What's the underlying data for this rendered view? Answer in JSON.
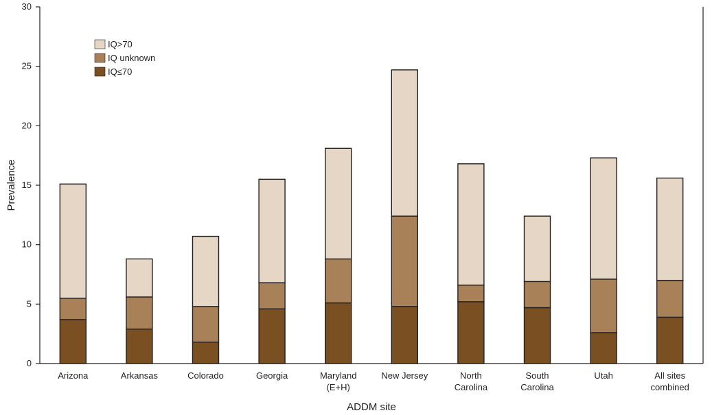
{
  "chart_data": {
    "type": "bar",
    "stacked": true,
    "title": "",
    "xlabel": "ADDM site",
    "ylabel": "Prevalence",
    "ylim": [
      0,
      30
    ],
    "yticks": [
      0,
      5,
      10,
      15,
      20,
      25,
      30
    ],
    "grid": false,
    "legend_position": "top-left",
    "categories": [
      [
        "Arizona"
      ],
      [
        "Arkansas"
      ],
      [
        "Colorado"
      ],
      [
        "Georgia"
      ],
      [
        "Maryland",
        "(E+H)"
      ],
      [
        "New Jersey"
      ],
      [
        "North",
        "Carolina"
      ],
      [
        "South",
        "Carolina"
      ],
      [
        "Utah"
      ],
      [
        "All sites",
        "combined"
      ]
    ],
    "series": [
      {
        "name": "IQ≤70",
        "color": "#7a5023",
        "values": [
          3.7,
          2.9,
          1.8,
          4.6,
          5.1,
          4.8,
          5.2,
          4.7,
          2.6,
          3.9
        ]
      },
      {
        "name": "IQ unknown",
        "color": "#a98159",
        "values": [
          1.8,
          2.7,
          3.0,
          2.2,
          3.7,
          7.6,
          1.4,
          2.2,
          4.5,
          3.1
        ]
      },
      {
        "name": "IQ>70",
        "color": "#e6d6c6",
        "values": [
          9.6,
          3.2,
          5.9,
          8.7,
          9.3,
          12.3,
          10.2,
          5.5,
          10.2,
          8.6
        ]
      }
    ],
    "legend_order": [
      "IQ>70",
      "IQ unknown",
      "IQ≤70"
    ]
  }
}
